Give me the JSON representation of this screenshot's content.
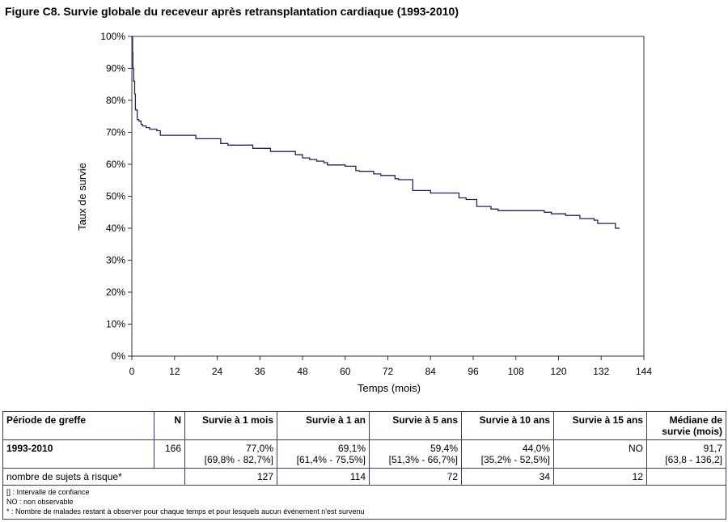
{
  "title": "Figure C8. Survie globale du receveur après retransplantation cardiaque (1993-2010)",
  "chart_data": {
    "type": "line",
    "xlabel": "Temps (mois)",
    "ylabel": "Taux de survie",
    "xlim": [
      0,
      144
    ],
    "ylim": [
      0,
      100
    ],
    "x_ticks": [
      "0",
      "12",
      "24",
      "36",
      "48",
      "60",
      "72",
      "84",
      "96",
      "108",
      "120",
      "132",
      "144"
    ],
    "y_ticks": [
      "0%",
      "10%",
      "20%",
      "30%",
      "40%",
      "50%",
      "60%",
      "70%",
      "80%",
      "90%",
      "100%"
    ],
    "line_color": "#22225e",
    "grid": false,
    "series": [
      {
        "x": [
          0,
          0.2,
          0.3,
          0.5,
          0.8,
          1,
          1.5,
          2,
          2.6,
          3,
          4,
          5,
          7,
          8,
          10,
          15,
          18,
          20,
          24,
          25,
          27,
          33,
          34,
          38,
          39,
          43,
          46,
          48,
          50,
          52,
          54,
          55,
          60,
          63,
          64,
          68,
          70,
          74,
          75,
          78,
          79,
          83,
          84,
          90,
          92,
          94,
          96,
          97,
          101,
          103,
          108,
          114,
          116,
          118,
          122,
          123,
          126,
          127,
          130,
          131,
          135,
          136,
          137
        ],
        "y": [
          100,
          95,
          90,
          86,
          82,
          77,
          74,
          73.5,
          72.5,
          72,
          71.5,
          71,
          70.5,
          69.1,
          69.1,
          69.1,
          68,
          68,
          68,
          66.5,
          66,
          66,
          65,
          65,
          64,
          64,
          63,
          62,
          61.5,
          61,
          60.5,
          59.8,
          59.4,
          58,
          57.8,
          57,
          56.5,
          55.5,
          55.2,
          55.2,
          51.8,
          51.8,
          51,
          51,
          49.5,
          49,
          49,
          46.8,
          46,
          45.5,
          45.5,
          45.5,
          45,
          44.5,
          44,
          44,
          43,
          43,
          42.5,
          41.5,
          41.5,
          40,
          39.8
        ]
      }
    ]
  },
  "table": {
    "headers": [
      "Période de greffe",
      "N",
      "Survie à 1 mois",
      "Survie à 1 an",
      "Survie à 5 ans",
      "Survie à 10 ans",
      "Survie à 15 ans",
      "Médiane de survie (mois)"
    ],
    "row1": {
      "period": "1993-2010",
      "n": "166",
      "m1": "77,0%",
      "m1_ci": "[69,8% - 82,7%]",
      "y1": "69,1%",
      "y1_ci": "[61,4% - 75,5%]",
      "y5": "59,4%",
      "y5_ci": "[51,3% - 66,7%]",
      "y10": "44,0%",
      "y10_ci": "[35,2% - 52,5%]",
      "y15": "NO",
      "median": "91,7",
      "median_ci": "[63,8 - 136,2]"
    },
    "row2": {
      "label": "nombre de sujets à risque*",
      "m1": "127",
      "y1": "114",
      "y5": "72",
      "y10": "34",
      "y15": "12"
    },
    "footnotes": [
      "[] : Intervalle de confiance",
      "NO : non observable",
      "* : Nombre de malades restant à observer pour chaque temps et pour lesquels aucun événement n'est survenu"
    ]
  }
}
